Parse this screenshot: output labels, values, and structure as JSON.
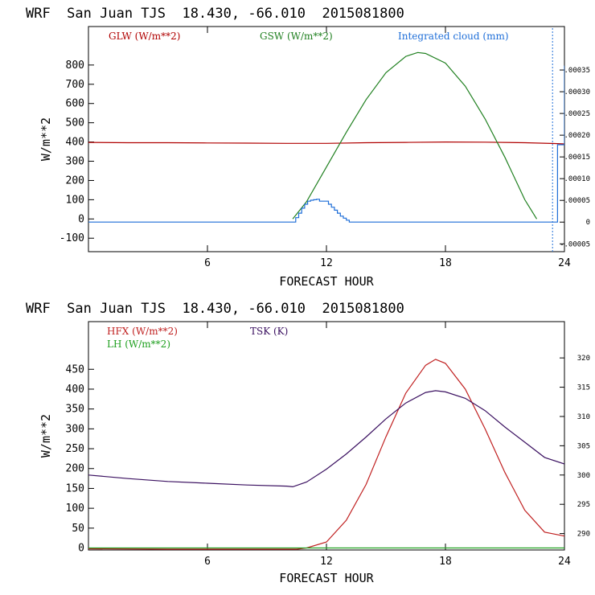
{
  "chart_data": [
    {
      "type": "line",
      "title": "WRF  San Juan TJS  18.430, -66.010  2015081800",
      "xlabel": "FORECAST HOUR",
      "ylabel": "W/m**2",
      "xlim": [
        0,
        24
      ],
      "ylim": [
        -170,
        1000
      ],
      "x_ticks": [
        6,
        12,
        18,
        24
      ],
      "y_ticks": [
        -100,
        0,
        100,
        200,
        300,
        400,
        500,
        600,
        700,
        800
      ],
      "right_axis": {
        "label": "Integrated cloud (mm)",
        "ylim": [
          -6.8e-05,
          0.00045
        ],
        "ticks": [
          -5e-05,
          0,
          5e-05,
          0.0001,
          0.00015,
          0.0002,
          0.00025,
          0.0003,
          0.00035
        ],
        "tick_labels": [
          "-.00005",
          "0",
          ".00005",
          ".00010",
          ".00015",
          ".00020",
          ".00025",
          ".00030",
          ".00035"
        ]
      },
      "series": [
        {
          "name": "GLW (W/m**2)",
          "color": "#b00000",
          "axis": "left",
          "x": [
            0,
            2,
            4,
            6,
            8,
            10,
            12,
            14,
            16,
            18,
            20,
            22,
            23.5,
            24
          ],
          "y": [
            398,
            396,
            396,
            395,
            394,
            393,
            393,
            396,
            398,
            400,
            399,
            396,
            392,
            390
          ]
        },
        {
          "name": "GSW (W/m**2)",
          "color": "#208020",
          "axis": "left",
          "x": [
            10.3,
            11,
            12,
            13,
            14,
            15,
            16,
            16.6,
            17,
            18,
            19,
            20,
            21,
            22,
            22.6
          ],
          "y": [
            0,
            90,
            270,
            450,
            620,
            760,
            845,
            865,
            860,
            810,
            690,
            520,
            320,
            100,
            0
          ]
        },
        {
          "name": "Integrated cloud (mm)",
          "color": "#1e6ed8",
          "axis": "right",
          "step": true,
          "x": [
            0,
            10.2,
            10.45,
            10.6,
            10.75,
            10.9,
            11.05,
            11.2,
            11.35,
            11.5,
            11.65,
            11.8,
            11.95,
            12.1,
            12.25,
            12.4,
            12.55,
            12.7,
            12.85,
            13.0,
            13.15,
            13.3,
            23.6,
            23.65,
            24
          ],
          "y": [
            0,
            0,
            1.03e-05,
            2.06e-05,
            3.2e-05,
            4.12e-05,
            4.81e-05,
            5.04e-05,
            5.15e-05,
            5.27e-05,
            4.81e-05,
            4.81e-05,
            4.81e-05,
            4.12e-05,
            3.43e-05,
            2.75e-05,
            2.06e-05,
            1.37e-05,
            9.2e-06,
            4.6e-06,
            0,
            0,
            0,
            0.000178,
            0.00036
          ]
        },
        {
          "name": "",
          "color": "#1e6ed8",
          "axis": "right",
          "style": "dotted",
          "x": [
            23.4,
            23.4
          ],
          "y": [
            -6.8e-05,
            0.00045
          ]
        }
      ]
    },
    {
      "type": "line",
      "title": "WRF  San Juan TJS  18.430, -66.010  2015081800",
      "xlabel": "FORECAST HOUR",
      "ylabel": "W/m**2",
      "xlim": [
        0,
        24
      ],
      "ylim": [
        -5,
        570
      ],
      "x_ticks": [
        6,
        12,
        18,
        24
      ],
      "y_ticks": [
        0,
        50,
        100,
        150,
        200,
        250,
        300,
        350,
        400,
        450
      ],
      "right_axis": {
        "label": "TSK (K)",
        "ylim": [
          287.2,
          326.2
        ],
        "ticks": [
          290,
          295,
          300,
          305,
          310,
          315,
          320
        ],
        "tick_labels": [
          "290",
          "295",
          "300",
          "305",
          "310",
          "315",
          "320"
        ]
      },
      "series": [
        {
          "name": "HFX (W/m**2)",
          "color": "#c02020",
          "axis": "left",
          "x": [
            0,
            4,
            8,
            10.5,
            11,
            12,
            13,
            14,
            15,
            16,
            17,
            17.5,
            18,
            19,
            20,
            21,
            22,
            23,
            24
          ],
          "y": [
            -2,
            -3,
            -3,
            -3,
            0,
            15,
            70,
            160,
            280,
            390,
            460,
            475,
            465,
            400,
            300,
            190,
            95,
            40,
            30
          ]
        },
        {
          "name": "LH (W/m**2)",
          "color": "#20a020",
          "axis": "left",
          "x": [
            0,
            6,
            12,
            18,
            24
          ],
          "y": [
            0,
            0,
            0,
            0,
            0
          ]
        },
        {
          "name": "TSK (K)",
          "color": "#3a1060",
          "axis": "right",
          "x": [
            0,
            2,
            4,
            6,
            8,
            10,
            10.3,
            11,
            12,
            13,
            14,
            15,
            16,
            17,
            17.5,
            18,
            19,
            20,
            21,
            22,
            23,
            24
          ],
          "y": [
            300.0,
            299.4,
            298.9,
            298.6,
            298.3,
            298.1,
            298.0,
            298.8,
            301.0,
            303.6,
            306.5,
            309.6,
            312.3,
            314.1,
            314.4,
            314.2,
            313.1,
            311.0,
            308.2,
            305.6,
            303.0,
            301.9
          ]
        }
      ]
    }
  ]
}
